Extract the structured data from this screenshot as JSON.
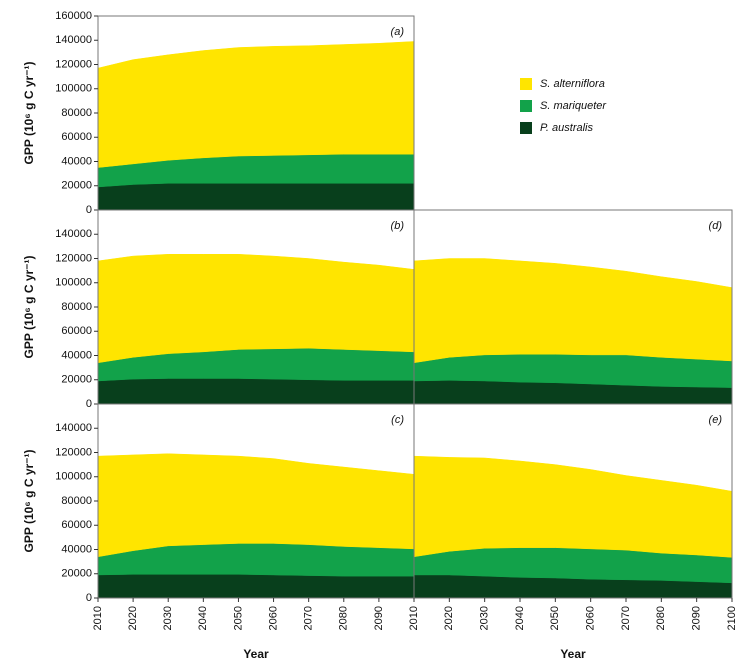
{
  "legend": [
    {
      "name": "S. alterniflora",
      "color": "#ffe500"
    },
    {
      "name": "S. mariqueter",
      "color": "#12a24a"
    },
    {
      "name": "P. australis",
      "color": "#083f1c"
    }
  ],
  "chart_data": [
    {
      "type": "stacked-area",
      "panel_label": "(a)",
      "ylabel": "GPP (10⁶ g C yr⁻¹)",
      "x": [
        2010,
        2020,
        2030,
        2040,
        2050,
        2060,
        2070,
        2080,
        2090,
        2100
      ],
      "xlim": [
        2010,
        2100
      ],
      "ylim": [
        0,
        160000
      ],
      "yticks": [
        0,
        20000,
        40000,
        60000,
        80000,
        100000,
        120000,
        140000,
        160000
      ],
      "series": [
        {
          "values": [
            19000,
            21000,
            22000,
            22000,
            22000,
            22000,
            22000,
            22000,
            22000,
            22000
          ]
        },
        {
          "values": [
            16000,
            17000,
            19000,
            21000,
            22500,
            23000,
            23500,
            24000,
            24000,
            24000
          ]
        },
        {
          "values": [
            82000,
            86000,
            87000,
            88500,
            89500,
            90000,
            90000,
            90500,
            91500,
            93000
          ]
        }
      ]
    },
    {
      "type": "stacked-area",
      "panel_label": "(b)",
      "ylabel": "GPP (10⁶ g C yr⁻¹)",
      "x": [
        2010,
        2020,
        2030,
        2040,
        2050,
        2060,
        2070,
        2080,
        2090,
        2100
      ],
      "xlim": [
        2010,
        2100
      ],
      "ylim": [
        0,
        160000
      ],
      "yticks": [
        0,
        20000,
        40000,
        60000,
        80000,
        100000,
        120000,
        140000
      ],
      "series": [
        {
          "values": [
            19000,
            20500,
            21000,
            21000,
            21000,
            20500,
            20000,
            19500,
            19500,
            19500
          ]
        },
        {
          "values": [
            15000,
            18000,
            20500,
            22000,
            24000,
            25000,
            26000,
            25500,
            24500,
            23500
          ]
        },
        {
          "values": [
            84000,
            83500,
            82000,
            80500,
            78500,
            76500,
            74000,
            72000,
            70500,
            68000
          ]
        }
      ]
    },
    {
      "type": "stacked-area",
      "panel_label": "(c)",
      "ylabel": "GPP (10⁶ g C yr⁻¹)",
      "xlabel": "Year",
      "x": [
        2010,
        2020,
        2030,
        2040,
        2050,
        2060,
        2070,
        2080,
        2090,
        2100
      ],
      "xlim": [
        2010,
        2100
      ],
      "xticks": [
        2010,
        2020,
        2030,
        2040,
        2050,
        2060,
        2070,
        2080,
        2090
      ],
      "ylim": [
        0,
        160000
      ],
      "yticks": [
        0,
        20000,
        40000,
        60000,
        80000,
        100000,
        120000,
        140000
      ],
      "series": [
        {
          "values": [
            19000,
            19500,
            19500,
            19500,
            19500,
            19000,
            18500,
            18000,
            18000,
            18000
          ]
        },
        {
          "values": [
            15000,
            19500,
            23500,
            24500,
            25500,
            26000,
            25500,
            24500,
            23500,
            22500
          ]
        },
        {
          "values": [
            83000,
            79000,
            76000,
            74000,
            72000,
            70000,
            67000,
            65500,
            63500,
            61500
          ]
        }
      ]
    },
    {
      "type": "stacked-area",
      "panel_label": "(d)",
      "x": [
        2010,
        2020,
        2030,
        2040,
        2050,
        2060,
        2070,
        2080,
        2090,
        2100
      ],
      "xlim": [
        2010,
        2100
      ],
      "ylim": [
        0,
        160000
      ],
      "series": [
        {
          "values": [
            19000,
            19500,
            19000,
            18000,
            17500,
            16500,
            15500,
            14500,
            14000,
            13500
          ]
        },
        {
          "values": [
            15000,
            19000,
            21500,
            23000,
            23500,
            24000,
            25000,
            24000,
            23000,
            22000
          ]
        },
        {
          "values": [
            84000,
            81500,
            79500,
            77000,
            75000,
            72500,
            69000,
            66500,
            64000,
            60500
          ]
        }
      ]
    },
    {
      "type": "stacked-area",
      "panel_label": "(e)",
      "xlabel": "Year",
      "x": [
        2010,
        2020,
        2030,
        2040,
        2050,
        2060,
        2070,
        2080,
        2090,
        2100
      ],
      "xlim": [
        2010,
        2100
      ],
      "xticks": [
        2010,
        2020,
        2030,
        2040,
        2050,
        2060,
        2070,
        2080,
        2090,
        2100
      ],
      "ylim": [
        0,
        160000
      ],
      "series": [
        {
          "values": [
            19000,
            19000,
            18000,
            17000,
            16500,
            15500,
            15000,
            14500,
            13500,
            12500
          ]
        },
        {
          "values": [
            15000,
            19500,
            23000,
            24500,
            25000,
            25000,
            24500,
            22500,
            22000,
            21000
          ]
        },
        {
          "values": [
            83000,
            77500,
            74500,
            71500,
            68500,
            65500,
            61500,
            60000,
            57500,
            54500
          ]
        }
      ]
    }
  ]
}
